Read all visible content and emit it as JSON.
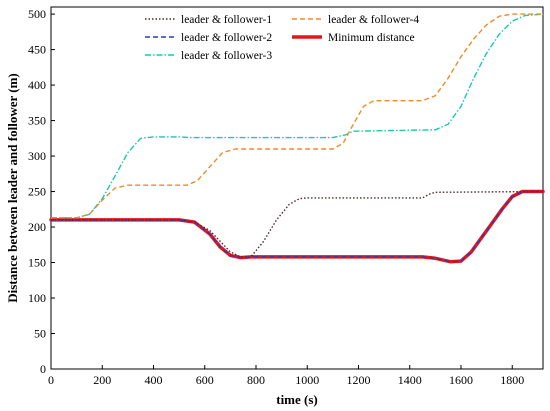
{
  "chart_data": {
    "type": "line",
    "title": "",
    "xlabel": "time (s)",
    "ylabel": "Distance between leader and follower (m)",
    "xlim": [
      0,
      1920
    ],
    "ylim": [
      0,
      510
    ],
    "xticks": [
      0,
      200,
      400,
      600,
      800,
      1000,
      1200,
      1400,
      1600,
      1800
    ],
    "yticks": [
      0,
      50,
      100,
      150,
      200,
      250,
      300,
      350,
      400,
      450,
      500
    ],
    "grid": false,
    "legend_position": "top-center",
    "series": [
      {
        "name": "leader & follower-1",
        "color": "#4a2a2a",
        "dash": "dotted",
        "x": [
          0,
          500,
          560,
          620,
          660,
          700,
          740,
          780,
          830,
          880,
          930,
          970,
          1000,
          1050,
          1450,
          1480,
          1500,
          1920
        ],
        "y": [
          210,
          210,
          207,
          195,
          180,
          165,
          158,
          158,
          180,
          210,
          232,
          240,
          241,
          241,
          241,
          247,
          249,
          250
        ]
      },
      {
        "name": "leader & follower-2",
        "color": "#1f3fbf",
        "dash": "dashed",
        "x": [
          0,
          500,
          560,
          620,
          660,
          700,
          740,
          780,
          1450,
          1500,
          1560,
          1600,
          1640,
          1680,
          1720,
          1760,
          1800,
          1840,
          1920
        ],
        "y": [
          210,
          210,
          207,
          190,
          172,
          160,
          157,
          158,
          158,
          156,
          151,
          152,
          165,
          185,
          205,
          225,
          243,
          250,
          250
        ]
      },
      {
        "name": "leader & follower-3",
        "color": "#19c9b0",
        "dash": "dashdot",
        "x": [
          0,
          100,
          150,
          200,
          250,
          300,
          350,
          400,
          500,
          550,
          1100,
          1150,
          1180,
          1500,
          1550,
          1600,
          1650,
          1700,
          1750,
          1800,
          1850,
          1920
        ],
        "y": [
          213,
          213,
          218,
          240,
          272,
          305,
          325,
          327,
          327,
          326,
          326,
          330,
          335,
          337,
          345,
          370,
          410,
          445,
          472,
          490,
          498,
          500
        ]
      },
      {
        "name": "leader & follower-4",
        "color": "#f08a2c",
        "dash": "dashed",
        "x": [
          0,
          100,
          150,
          200,
          250,
          300,
          530,
          570,
          620,
          670,
          720,
          1100,
          1140,
          1180,
          1220,
          1260,
          1450,
          1500,
          1550,
          1600,
          1650,
          1700,
          1750,
          1800,
          1920
        ],
        "y": [
          213,
          213,
          218,
          238,
          255,
          259,
          259,
          265,
          285,
          305,
          310,
          310,
          318,
          345,
          370,
          378,
          378,
          385,
          410,
          440,
          465,
          485,
          497,
          500,
          500
        ]
      },
      {
        "name": "Minimum distance",
        "color": "#e8141b",
        "dash": "solid",
        "x": [
          0,
          500,
          560,
          620,
          660,
          700,
          740,
          780,
          1450,
          1500,
          1560,
          1600,
          1640,
          1680,
          1720,
          1760,
          1800,
          1840,
          1920
        ],
        "y": [
          210,
          210,
          207,
          190,
          172,
          160,
          157,
          158,
          158,
          156,
          151,
          152,
          165,
          185,
          205,
          225,
          243,
          250,
          250
        ]
      }
    ]
  }
}
